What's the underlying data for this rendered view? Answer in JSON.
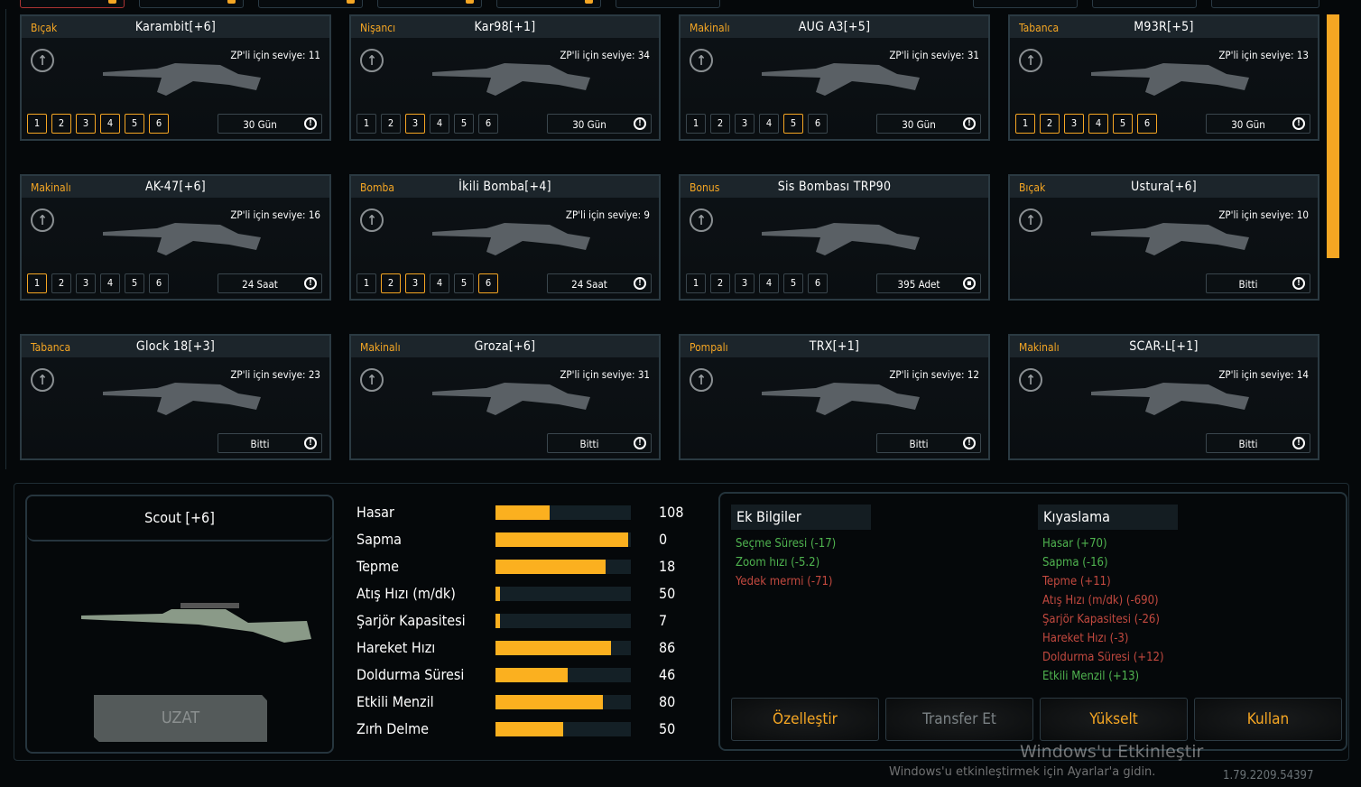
{
  "colors": {
    "accent": "#f5a623",
    "bar": "#fbb01f",
    "positive": "#4fb34f",
    "negative": "#c2493f"
  },
  "cards": [
    {
      "category": "Bıçak",
      "name": "Karambit[+6]",
      "zp": "ZP'li için seviye: 11",
      "levels": [
        1,
        2,
        3,
        4,
        5,
        6
      ],
      "active": [
        1,
        2,
        3,
        4,
        5,
        6
      ],
      "duration": "30 Gün",
      "duration_icon": "clock-icon"
    },
    {
      "category": "Nişancı",
      "name": "Kar98[+1]",
      "zp": "ZP'li için seviye: 34",
      "levels": [
        1,
        2,
        3,
        4,
        5,
        6
      ],
      "active": [
        3
      ],
      "duration": "30 Gün",
      "duration_icon": "clock-icon"
    },
    {
      "category": "Makinalı",
      "name": "AUG A3[+5]",
      "zp": "ZP'li için seviye: 31",
      "levels": [
        1,
        2,
        3,
        4,
        5,
        6
      ],
      "active": [
        5
      ],
      "duration": "30 Gün",
      "duration_icon": "clock-icon"
    },
    {
      "category": "Tabanca",
      "name": "M93R[+5]",
      "zp": "ZP'li için seviye: 13",
      "levels": [
        1,
        2,
        3,
        4,
        5,
        6
      ],
      "active": [
        1,
        2,
        3,
        4,
        5,
        6
      ],
      "duration": "30 Gün",
      "duration_icon": "clock-icon"
    },
    {
      "category": "Makinalı",
      "name": "AK-47[+6]",
      "zp": "ZP'li için seviye: 16",
      "levels": [
        1,
        2,
        3,
        4,
        5,
        6
      ],
      "active": [
        1
      ],
      "duration": "24 Saat",
      "duration_icon": "clock-icon"
    },
    {
      "category": "Bomba",
      "name": "İkili Bomba[+4]",
      "zp": "ZP'li için seviye: 9",
      "levels": [
        1,
        2,
        3,
        4,
        5,
        6
      ],
      "active": [
        2,
        3,
        6
      ],
      "duration": "24 Saat",
      "duration_icon": "clock-icon"
    },
    {
      "category": "Bonus",
      "name": "Sis Bombası TRP90",
      "zp": "",
      "levels": [
        1,
        2,
        3,
        4,
        5,
        6
      ],
      "active": [],
      "duration": "395 Adet",
      "duration_icon": "box-icon"
    },
    {
      "category": "Bıçak",
      "name": "Ustura[+6]",
      "zp": "ZP'li için seviye: 10",
      "levels": [],
      "active": [],
      "duration": "Bitti",
      "duration_icon": "clock-icon"
    },
    {
      "category": "Tabanca",
      "name": "Glock 18[+3]",
      "zp": "ZP'li için seviye: 23",
      "levels": [],
      "active": [],
      "duration": "Bitti",
      "duration_icon": "clock-icon"
    },
    {
      "category": "Makinalı",
      "name": "Groza[+6]",
      "zp": "ZP'li için seviye: 31",
      "levels": [],
      "active": [],
      "duration": "Bitti",
      "duration_icon": "clock-icon"
    },
    {
      "category": "Pompalı",
      "name": "TRX[+1]",
      "zp": "ZP'li için seviye: 12",
      "levels": [],
      "active": [],
      "duration": "Bitti",
      "duration_icon": "clock-icon"
    },
    {
      "category": "Makinalı",
      "name": "SCAR-L[+1]",
      "zp": "ZP'li için seviye: 14",
      "levels": [],
      "active": [],
      "duration": "Bitti",
      "duration_icon": "clock-icon"
    }
  ],
  "selected": {
    "name": "Scout [+6]",
    "extend_label": "UZAT"
  },
  "stats": [
    {
      "label": "Hasar",
      "value": "108",
      "fill": 0.4
    },
    {
      "label": "Sapma",
      "value": "0",
      "fill": 0.98
    },
    {
      "label": "Tepme",
      "value": "18",
      "fill": 0.81
    },
    {
      "label": "Atış Hızı (m/dk)",
      "value": "50",
      "fill": 0.03
    },
    {
      "label": "Şarjör Kapasitesi",
      "value": "7",
      "fill": 0.03
    },
    {
      "label": "Hareket Hızı",
      "value": "86",
      "fill": 0.85
    },
    {
      "label": "Doldurma Süresi",
      "value": "46",
      "fill": 0.53
    },
    {
      "label": "Etkili Menzil",
      "value": "80",
      "fill": 0.79
    },
    {
      "label": "Zırh Delme",
      "value": "50",
      "fill": 0.5
    }
  ],
  "extra": {
    "title": "Ek Bilgiler",
    "lines": [
      {
        "text": "Seçme Süresi (-17)",
        "tone": "g"
      },
      {
        "text": "Zoom hızı (-5.2)",
        "tone": "g"
      },
      {
        "text": "Yedek mermi (-71)",
        "tone": "r"
      }
    ]
  },
  "compare": {
    "title": "Kıyaslama",
    "lines": [
      {
        "text": "Hasar (+70)",
        "tone": "g"
      },
      {
        "text": "Sapma (-16)",
        "tone": "g"
      },
      {
        "text": "Tepme (+11)",
        "tone": "r"
      },
      {
        "text": "Atış Hızı (m/dk) (-690)",
        "tone": "r"
      },
      {
        "text": "Şarjör Kapasitesi (-26)",
        "tone": "r"
      },
      {
        "text": "Hareket Hızı (-3)",
        "tone": "r"
      },
      {
        "text": "Doldurma Süresi (+12)",
        "tone": "r"
      },
      {
        "text": "Etkili Menzil (+13)",
        "tone": "g"
      }
    ]
  },
  "buttons": {
    "customize": "Özelleştir",
    "transfer": "Transfer Et",
    "upgrade": "Yükselt",
    "use": "Kullan"
  },
  "watermark": {
    "title": "Windows'u Etkinleştir",
    "sub": "Windows'u etkinleştirmek için Ayarlar'a gidin."
  },
  "version": "1.79.2209.54397"
}
